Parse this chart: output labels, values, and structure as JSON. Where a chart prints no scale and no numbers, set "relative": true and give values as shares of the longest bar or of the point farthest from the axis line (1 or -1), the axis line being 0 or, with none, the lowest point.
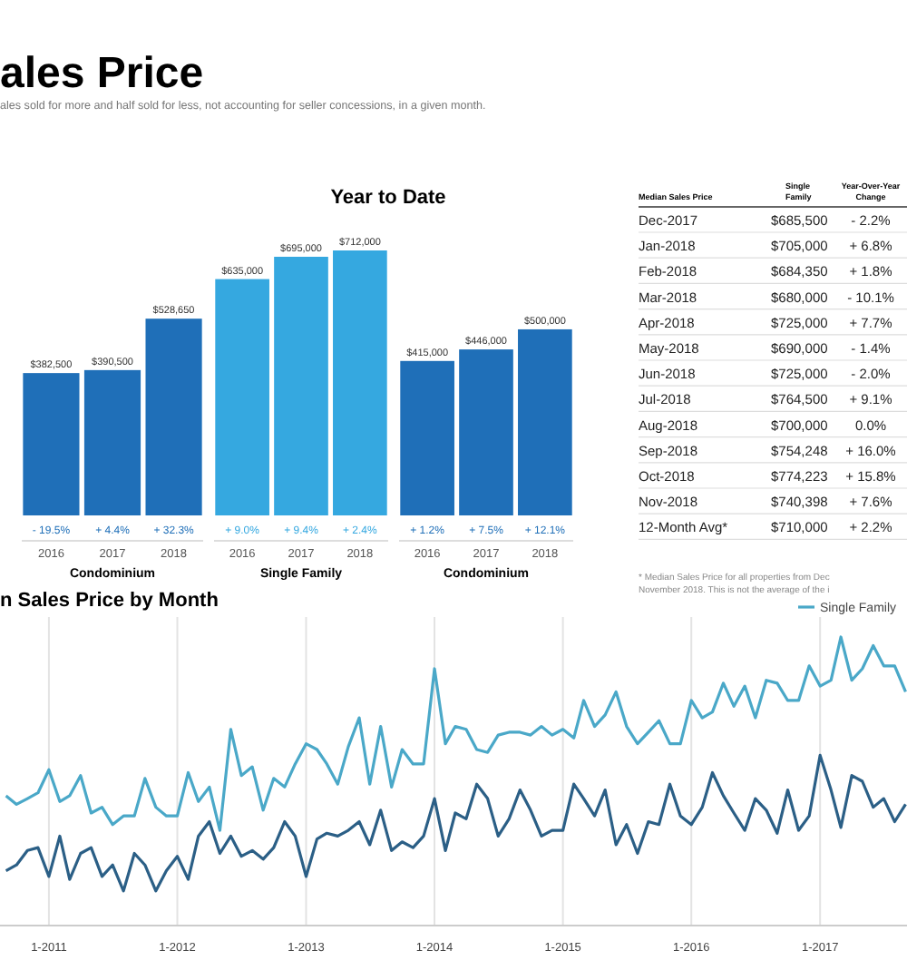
{
  "chart_data": [
    {
      "type": "bar",
      "title": "ales Price",
      "subtitle": "ales sold for more and half sold for less, not accounting for seller concessions, in a given month.",
      "categories": [
        "2016",
        "2017",
        "2018"
      ],
      "xlabel": "Condominium",
      "color": "#1f6fb8",
      "values": [
        382500,
        390500,
        528650
      ],
      "value_labels": [
        "$382,500",
        "$390,500",
        "$528,650"
      ],
      "annotations": [
        "- 19.5%",
        "+ 4.4%",
        "+ 32.3%"
      ]
    },
    {
      "type": "bar",
      "title": "Year to Date",
      "categories": [
        "2016",
        "2017",
        "2018"
      ],
      "xlabel": "Single Family",
      "color": "#35a8e0",
      "values": [
        635000,
        695000,
        712000
      ],
      "value_labels": [
        "$635,000",
        "$695,000",
        "$712,000"
      ],
      "annotations": [
        "+ 9.0%",
        "+ 9.4%",
        "+ 2.4%"
      ]
    },
    {
      "type": "bar",
      "categories": [
        "2016",
        "2017",
        "2018"
      ],
      "xlabel": "Condominium",
      "color": "#1f6fb8",
      "values": [
        415000,
        446000,
        500000
      ],
      "value_labels": [
        "$415,000",
        "$446,000",
        "$500,000"
      ],
      "annotations": [
        "+ 1.2%",
        "+ 7.5%",
        "+ 12.1%"
      ]
    },
    {
      "type": "other",
      "title": "Median Sales Price",
      "categories": [
        "Dec-2017",
        "Jan-2018",
        "Feb-2018",
        "Mar-2018",
        "Apr-2018",
        "May-2018",
        "Jun-2018",
        "Jul-2018",
        "Aug-2018",
        "Sep-2018",
        "Oct-2018",
        "Nov-2018",
        "12-Month Avg*"
      ],
      "series": [
        {
          "name": "Single Family",
          "values": [
            685500,
            705000,
            684350,
            680000,
            725000,
            690000,
            725000,
            764500,
            700000,
            754248,
            774223,
            740398,
            710000
          ],
          "value_labels": [
            "$685,500",
            "$705,000",
            "$684,350",
            "$680,000",
            "$725,000",
            "$690,000",
            "$725,000",
            "$764,500",
            "$700,000",
            "$754,248",
            "$774,223",
            "$740,398",
            "$710,000"
          ]
        },
        {
          "name": "Year-Over-Year Change",
          "values": [
            -2.2,
            6.8,
            1.8,
            -10.1,
            7.7,
            -1.4,
            -2.0,
            9.1,
            0.0,
            16.0,
            15.8,
            7.6,
            2.2
          ],
          "value_labels": [
            "- 2.2%",
            "+ 6.8%",
            "+ 1.8%",
            "- 10.1%",
            "+ 7.7%",
            "- 1.4%",
            "- 2.0%",
            "+ 9.1%",
            "0.0%",
            "+ 16.0%",
            "+ 15.8%",
            "+ 7.6%",
            "+ 2.2%"
          ]
        }
      ],
      "annotations": [
        "* Median Sales Price for all properties from Dec",
        "November 2018. This is not the average of the i"
      ]
    },
    {
      "type": "line",
      "title": "n Sales Price by Month",
      "relative": true,
      "grid": "x",
      "legend": "top right",
      "x": [
        "2010-09",
        "2010-10",
        "2010-11",
        "2010-12",
        "2011-01",
        "2011-02",
        "2011-03",
        "2011-04",
        "2011-05",
        "2011-06",
        "2011-07",
        "2011-08",
        "2011-09",
        "2011-10",
        "2011-11",
        "2011-12",
        "2012-01",
        "2012-02",
        "2012-03",
        "2012-04",
        "2012-05",
        "2012-06",
        "2012-07",
        "2012-08",
        "2012-09",
        "2012-10",
        "2012-11",
        "2012-12",
        "2013-01",
        "2013-02",
        "2013-03",
        "2013-04",
        "2013-05",
        "2013-06",
        "2013-07",
        "2013-08",
        "2013-09",
        "2013-10",
        "2013-11",
        "2013-12",
        "2014-01",
        "2014-02",
        "2014-03",
        "2014-04",
        "2014-05",
        "2014-06",
        "2014-07",
        "2014-08",
        "2014-09",
        "2014-10",
        "2014-11",
        "2014-12",
        "2015-01",
        "2015-02",
        "2015-03",
        "2015-04",
        "2015-05",
        "2015-06",
        "2015-07",
        "2015-08",
        "2015-09",
        "2015-10",
        "2015-11",
        "2015-12",
        "2016-01",
        "2016-02",
        "2016-03",
        "2016-04",
        "2016-05",
        "2016-06",
        "2016-07",
        "2016-08",
        "2016-09",
        "2016-10",
        "2016-11",
        "2016-12",
        "2017-01",
        "2017-02",
        "2017-03",
        "2017-04",
        "2017-05",
        "2017-06",
        "2017-07",
        "2017-08",
        "2017-09"
      ],
      "xlim": [
        "2010-08-15",
        "2017-09-05"
      ],
      "xticks": [
        {
          "value": "2011-01",
          "label": "1-2011"
        },
        {
          "value": "2012-01",
          "label": "1-2012"
        },
        {
          "value": "2013-01",
          "label": "1-2013"
        },
        {
          "value": "2014-01",
          "label": "1-2014"
        },
        {
          "value": "2015-01",
          "label": "1-2015"
        },
        {
          "value": "2016-01",
          "label": "1-2016"
        },
        {
          "value": "2017-01",
          "label": "1-2017"
        }
      ],
      "series": [
        {
          "name": "Single Family",
          "color": "#4aa8c8",
          "values": [
            0.45,
            0.42,
            0.44,
            0.46,
            0.54,
            0.43,
            0.45,
            0.52,
            0.39,
            0.41,
            0.35,
            0.38,
            0.38,
            0.51,
            0.41,
            0.38,
            0.38,
            0.53,
            0.43,
            0.48,
            0.33,
            0.68,
            0.52,
            0.55,
            0.4,
            0.51,
            0.48,
            0.56,
            0.63,
            0.61,
            0.56,
            0.49,
            0.62,
            0.72,
            0.49,
            0.69,
            0.48,
            0.61,
            0.56,
            0.56,
            0.89,
            0.63,
            0.69,
            0.68,
            0.61,
            0.6,
            0.66,
            0.67,
            0.67,
            0.66,
            0.69,
            0.66,
            0.68,
            0.65,
            0.78,
            0.69,
            0.73,
            0.81,
            0.69,
            0.63,
            0.67,
            0.71,
            0.63,
            0.63,
            0.78,
            0.72,
            0.74,
            0.84,
            0.76,
            0.83,
            0.72,
            0.85,
            0.84,
            0.78,
            0.78,
            0.9,
            0.83,
            0.85,
            1,
            0.85,
            0.89,
            0.97,
            0.9,
            0.9,
            0.81
          ]
        },
        {
          "color": "#2b5f86",
          "values": [
            0.19,
            0.21,
            0.26,
            0.27,
            0.17,
            0.31,
            0.16,
            0.25,
            0.27,
            0.17,
            0.21,
            0.12,
            0.25,
            0.21,
            0.12,
            0.19,
            0.24,
            0.16,
            0.31,
            0.36,
            0.25,
            0.31,
            0.24,
            0.26,
            0.23,
            0.27,
            0.36,
            0.31,
            0.17,
            0.3,
            0.32,
            0.31,
            0.33,
            0.36,
            0.28,
            0.4,
            0.26,
            0.29,
            0.27,
            0.31,
            0.44,
            0.26,
            0.39,
            0.37,
            0.49,
            0.44,
            0.31,
            0.37,
            0.47,
            0.4,
            0.31,
            0.33,
            0.33,
            0.49,
            0.44,
            0.38,
            0.47,
            0.28,
            0.35,
            0.25,
            0.36,
            0.35,
            0.49,
            0.38,
            0.35,
            0.41,
            0.53,
            0.45,
            0.39,
            0.33,
            0.44,
            0.4,
            0.32,
            0.47,
            0.33,
            0.38,
            0.59,
            0.47,
            0.34,
            0.52,
            0.5,
            0.41,
            0.44,
            0.36,
            0.42
          ]
        }
      ]
    }
  ]
}
